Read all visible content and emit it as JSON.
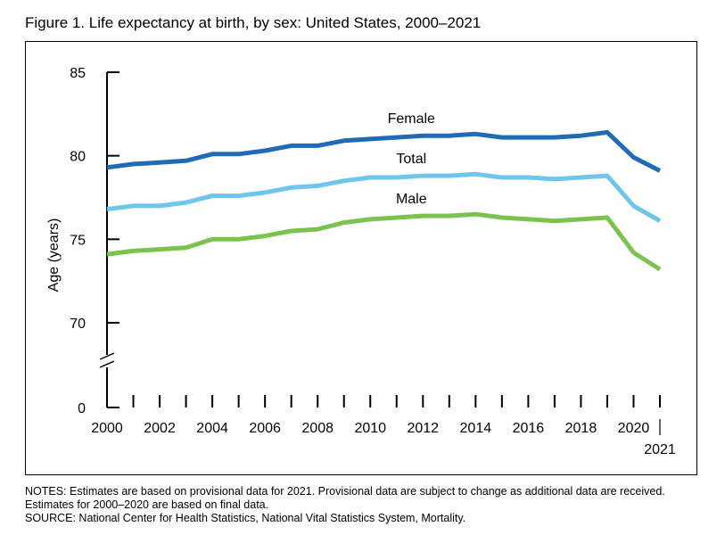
{
  "title": "Figure 1. Life expectancy at birth, by sex: United States, 2000–2021",
  "notes": [
    "NOTES: Estimates are based on provisional data for 2021. Provisional data are subject to change as additional data are received.",
    "Estimates for 2000–2020 are based on final data.",
    "SOURCE: National Center for Health Statistics, National Vital Statistics System, Mortality."
  ],
  "colors": {
    "Female": "#1f6bb8",
    "Total": "#6ec6ec",
    "Male": "#7cc24e"
  },
  "chart_data": {
    "type": "line",
    "ylabel": "Age (years)",
    "xlabel": "",
    "ylim": [
      70,
      85
    ],
    "y_axis_break": true,
    "y_ticks": [
      "85",
      "80",
      "75",
      "70",
      "0"
    ],
    "x_ticks": [
      "2000",
      "2002",
      "2004",
      "2006",
      "2008",
      "2010",
      "2012",
      "2014",
      "2016",
      "2018",
      "2020",
      "2021"
    ],
    "grid": false,
    "x": [
      2000,
      2001,
      2002,
      2003,
      2004,
      2005,
      2006,
      2007,
      2008,
      2009,
      2010,
      2011,
      2012,
      2013,
      2014,
      2015,
      2016,
      2017,
      2018,
      2019,
      2020,
      2021
    ],
    "series": [
      {
        "name": "Female",
        "values": [
          79.3,
          79.5,
          79.6,
          79.7,
          80.1,
          80.1,
          80.3,
          80.6,
          80.6,
          80.9,
          81.0,
          81.1,
          81.2,
          81.2,
          81.3,
          81.1,
          81.1,
          81.1,
          81.2,
          81.4,
          79.9,
          79.1
        ]
      },
      {
        "name": "Total",
        "values": [
          76.8,
          77.0,
          77.0,
          77.2,
          77.6,
          77.6,
          77.8,
          78.1,
          78.2,
          78.5,
          78.7,
          78.7,
          78.8,
          78.8,
          78.9,
          78.7,
          78.7,
          78.6,
          78.7,
          78.8,
          77.0,
          76.1
        ]
      },
      {
        "name": "Male",
        "values": [
          74.1,
          74.3,
          74.4,
          74.5,
          75.0,
          75.0,
          75.2,
          75.5,
          75.6,
          76.0,
          76.2,
          76.3,
          76.4,
          76.4,
          76.5,
          76.3,
          76.2,
          76.1,
          76.2,
          76.3,
          74.2,
          73.2
        ]
      }
    ]
  }
}
